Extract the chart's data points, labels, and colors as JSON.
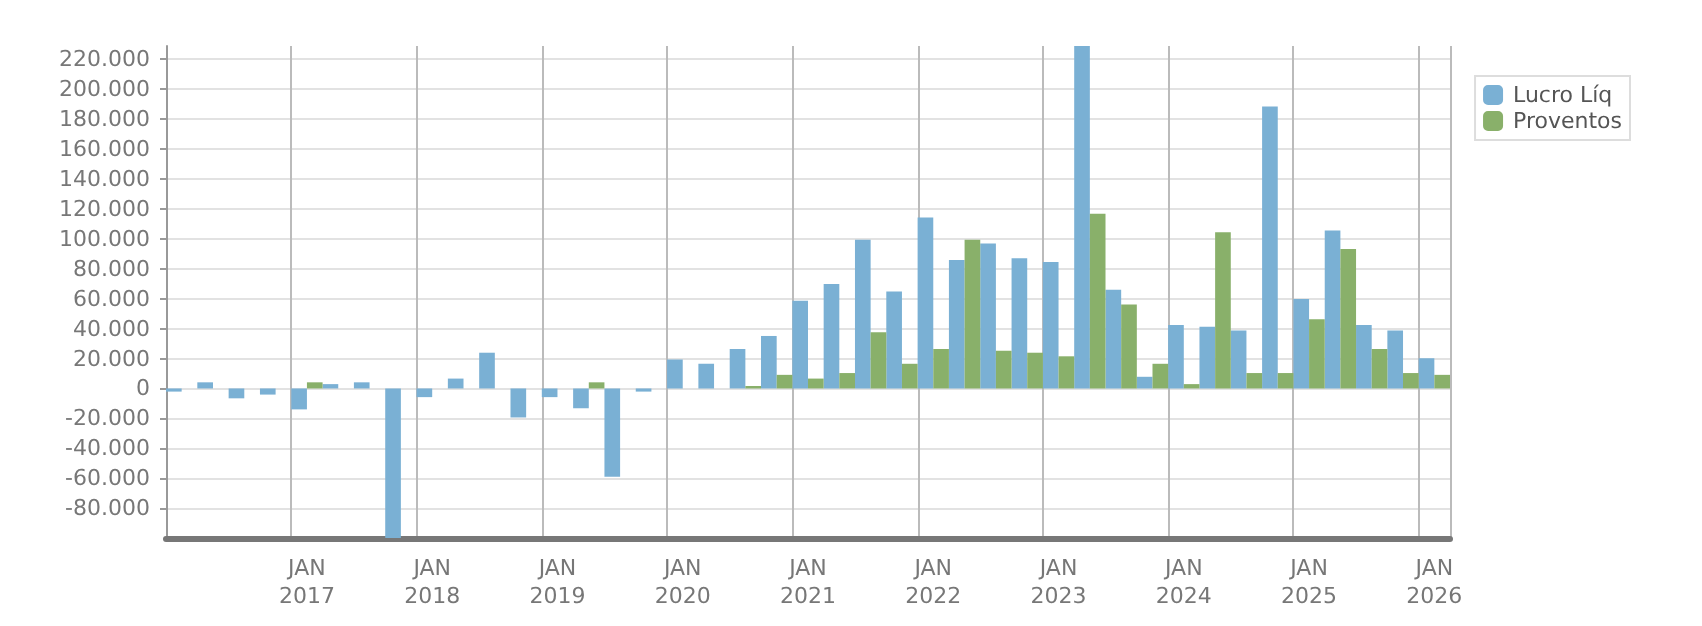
{
  "chart_data": {
    "type": "bar",
    "categories": [
      null,
      null,
      null,
      null,
      "JAN\n2017",
      null,
      null,
      null,
      "JAN\n2018",
      null,
      null,
      null,
      "JAN\n2019",
      null,
      null,
      null,
      "JAN\n2020",
      null,
      null,
      null,
      "JAN\n2021",
      null,
      null,
      null,
      "JAN\n2022",
      null,
      null,
      null,
      "JAN\n2023",
      null,
      null,
      null,
      "JAN\n2024",
      null,
      null,
      null,
      "JAN\n2025",
      null,
      null,
      null,
      "JAN\n2026"
    ],
    "series": [
      {
        "name": "Lucro Líq",
        "color": "#7ab0d4",
        "values": [
          -2100,
          4100,
          -6600,
          -4100,
          -14000,
          2900,
          4100,
          -100000,
          -5800,
          6600,
          23900,
          -19400,
          -5800,
          -13200,
          -59000,
          -2100,
          19400,
          16500,
          26400,
          35100,
          58600,
          69800,
          99500,
          64800,
          114300,
          85900,
          97000,
          87100,
          84600,
          229000,
          66000,
          7800,
          42500,
          41300,
          38800,
          188600,
          59900,
          105700,
          42500,
          38800,
          20200
        ]
      },
      {
        "name": "Proventos",
        "color": "#89b06a",
        "values": [
          0,
          0,
          0,
          0,
          4100,
          0,
          0,
          0,
          0,
          0,
          0,
          0,
          0,
          4100,
          0,
          0,
          0,
          0,
          1700,
          9100,
          6600,
          10300,
          37600,
          16500,
          26400,
          99500,
          25200,
          23900,
          21500,
          116800,
          56100,
          16500,
          2900,
          104400,
          10300,
          10300,
          46200,
          93300,
          26400,
          10300,
          9100
        ]
      }
    ],
    "ylim": [
      -100000,
      229000
    ],
    "yticks": [
      {
        "value": -80000,
        "label": "-80.000"
      },
      {
        "value": -60000,
        "label": "-60.000"
      },
      {
        "value": -40000,
        "label": "-40.000"
      },
      {
        "value": -20000,
        "label": "-20.000"
      },
      {
        "value": 0,
        "label": "0"
      },
      {
        "value": 20000,
        "label": "20.000"
      },
      {
        "value": 40000,
        "label": "40.000"
      },
      {
        "value": 60000,
        "label": "60.000"
      },
      {
        "value": 80000,
        "label": "80.000"
      },
      {
        "value": 100000,
        "label": "100.000"
      },
      {
        "value": 120000,
        "label": "120.000"
      },
      {
        "value": 140000,
        "label": "140.000"
      },
      {
        "value": 160000,
        "label": "160.000"
      },
      {
        "value": 180000,
        "label": "180.000"
      },
      {
        "value": 200000,
        "label": "200.000"
      },
      {
        "value": 220000,
        "label": "220.000"
      }
    ],
    "grid": true,
    "legend": "top right"
  }
}
